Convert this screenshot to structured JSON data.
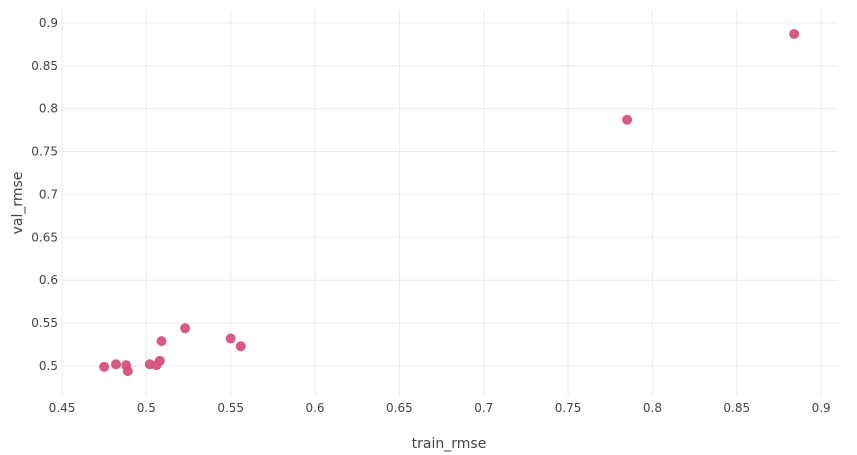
{
  "chart_data": {
    "type": "scatter",
    "xlabel": "train_rmse",
    "ylabel": "val_rmse",
    "xlim": [
      0.45,
      0.91
    ],
    "ylim": [
      0.465,
      0.915
    ],
    "x_ticks": [
      0.45,
      0.5,
      0.55,
      0.6,
      0.65,
      0.7,
      0.75,
      0.8,
      0.85,
      0.9
    ],
    "x_tick_labels": [
      "0.45",
      "0.5",
      "0.55",
      "0.6",
      "0.65",
      "0.7",
      "0.75",
      "0.8",
      "0.85",
      "0.9"
    ],
    "y_ticks": [
      0.5,
      0.55,
      0.6,
      0.65,
      0.7,
      0.75,
      0.8,
      0.85,
      0.9
    ],
    "y_tick_labels": [
      "0.5",
      "0.55",
      "0.6",
      "0.65",
      "0.7",
      "0.75",
      "0.8",
      "0.85",
      "0.9"
    ],
    "grid": true,
    "marker_color": "#d6507f",
    "points": [
      {
        "x": 0.475,
        "y": 0.499
      },
      {
        "x": 0.482,
        "y": 0.502
      },
      {
        "x": 0.488,
        "y": 0.501
      },
      {
        "x": 0.489,
        "y": 0.494
      },
      {
        "x": 0.502,
        "y": 0.502
      },
      {
        "x": 0.506,
        "y": 0.501
      },
      {
        "x": 0.508,
        "y": 0.506
      },
      {
        "x": 0.509,
        "y": 0.529
      },
      {
        "x": 0.523,
        "y": 0.544
      },
      {
        "x": 0.55,
        "y": 0.532
      },
      {
        "x": 0.556,
        "y": 0.523
      },
      {
        "x": 0.785,
        "y": 0.787
      },
      {
        "x": 0.884,
        "y": 0.887
      }
    ]
  }
}
